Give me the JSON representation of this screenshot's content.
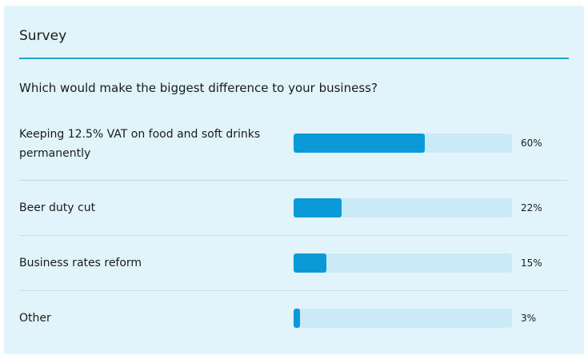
{
  "survey": {
    "title": "Survey",
    "question": "Which would make the biggest difference to your business?",
    "options": [
      {
        "label": "Keeping 12.5% VAT on food and soft drinks permanently",
        "percent": 60,
        "percent_label": "60%"
      },
      {
        "label": "Beer duty cut",
        "percent": 22,
        "percent_label": "22%"
      },
      {
        "label": "Business rates reform",
        "percent": 15,
        "percent_label": "15%"
      },
      {
        "label": "Other",
        "percent": 3,
        "percent_label": "3%"
      }
    ]
  },
  "colors": {
    "card_background": "#e1f3fb",
    "accent_rule": "#1fa3c4",
    "bar_fill": "#0a9ad8",
    "bar_track": "#cbeaf8",
    "divider": "#b9e1f2"
  }
}
